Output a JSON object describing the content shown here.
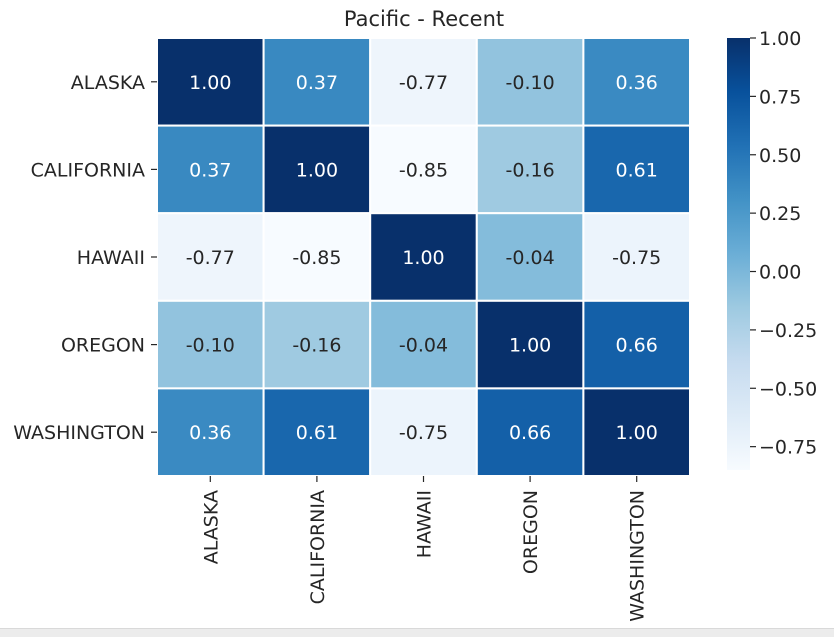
{
  "chart_data": {
    "type": "heatmap",
    "title": "Pacific - Recent",
    "xlabel": "",
    "ylabel": "",
    "rows": [
      "ALASKA",
      "CALIFORNIA",
      "HAWAII",
      "OREGON",
      "WASHINGTON"
    ],
    "columns": [
      "ALASKA",
      "CALIFORNIA",
      "HAWAII",
      "OREGON",
      "WASHINGTON"
    ],
    "values": [
      [
        1.0,
        0.37,
        -0.77,
        -0.1,
        0.36
      ],
      [
        0.37,
        1.0,
        -0.85,
        -0.16,
        0.61
      ],
      [
        -0.77,
        -0.85,
        1.0,
        -0.04,
        -0.75
      ],
      [
        -0.1,
        -0.16,
        -0.04,
        1.0,
        0.66
      ],
      [
        0.36,
        0.61,
        -0.75,
        0.66,
        1.0
      ]
    ],
    "annotation_format": "0.00",
    "colormap": "Blues",
    "colorbar": {
      "range": [
        -0.85,
        1.0
      ],
      "ticks": [
        1.0,
        0.75,
        0.5,
        0.25,
        0.0,
        -0.25,
        -0.5,
        -0.75
      ],
      "tick_labels": [
        "1.00",
        "0.75",
        "0.50",
        "0.25",
        "0.00",
        "−0.25",
        "−0.50",
        "−0.75"
      ]
    },
    "grid": false,
    "legend": "colorbar-right",
    "colors": {
      "cmap_stops": [
        "#f7fbff",
        "#deebf7",
        "#c6dbef",
        "#9ecae1",
        "#6baed6",
        "#4292c6",
        "#2171b5",
        "#08519c",
        "#08306b"
      ],
      "cell_border": "#ffffff",
      "text_dark": "#262626",
      "text_light": "#ffffff"
    }
  }
}
